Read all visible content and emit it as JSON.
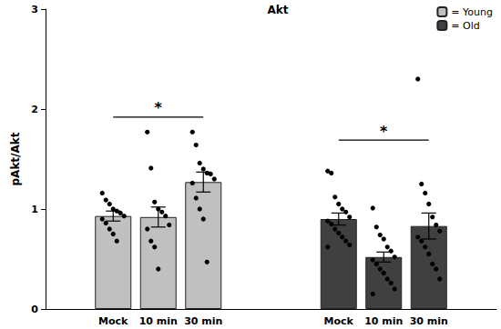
{
  "chart_data": {
    "type": "bar",
    "title": "Akt",
    "y_label": "pAkt/Akt",
    "categories": [
      null,
      "Mock",
      "10 min",
      "30 min",
      null,
      null,
      "Mock",
      "10 min",
      "30 min",
      null
    ],
    "ylim": [
      0,
      3
    ],
    "yticks": [
      0,
      1,
      2,
      3
    ],
    "grid": false,
    "legend": "top-right",
    "series": [
      {
        "name": "= Young",
        "color": "#c0c0c0",
        "values": [
          null,
          0.93,
          0.92,
          1.27,
          null,
          null,
          null,
          null,
          null,
          null
        ],
        "errors": [
          null,
          0.05,
          0.1,
          0.1,
          null,
          null,
          null,
          null,
          null,
          null
        ],
        "points": [
          null,
          [
            1.16,
            1.09,
            1.05,
            1.0,
            0.98,
            0.96,
            0.93,
            0.9,
            0.86,
            0.8,
            0.75,
            0.68
          ],
          [
            1.77,
            1.41,
            1.07,
            1.0,
            0.97,
            0.93,
            0.84,
            0.8,
            0.68,
            0.62,
            0.4
          ],
          [
            1.77,
            1.64,
            1.46,
            1.4,
            1.36,
            1.35,
            1.3,
            1.26,
            1.11,
            1.0,
            0.9,
            0.47
          ],
          null,
          null,
          null,
          null,
          null,
          null
        ]
      },
      {
        "name": "= Old",
        "color": "#404040",
        "values": [
          null,
          null,
          null,
          null,
          null,
          null,
          0.9,
          0.52,
          0.83,
          null
        ],
        "errors": [
          null,
          null,
          null,
          null,
          null,
          null,
          0.06,
          0.05,
          0.13,
          null
        ],
        "points": [
          null,
          null,
          null,
          null,
          null,
          null,
          [
            1.38,
            1.36,
            1.12,
            1.05,
            1.0,
            0.97,
            0.92,
            0.88,
            0.85,
            0.8,
            0.76,
            0.72,
            0.68,
            0.64,
            0.62
          ],
          [
            1.01,
            0.82,
            0.74,
            0.7,
            0.62,
            0.58,
            0.52,
            0.49,
            0.45,
            0.4,
            0.36,
            0.3,
            0.26,
            0.2,
            0.15
          ],
          [
            2.3,
            1.25,
            1.16,
            1.05,
            0.92,
            0.84,
            0.78,
            0.72,
            0.68,
            0.62,
            0.55,
            0.45,
            0.4,
            0.3
          ],
          null
        ]
      }
    ],
    "significance": [
      {
        "series": "= Young",
        "from": "Mock",
        "to": "30 min",
        "y": 1.92,
        "text": "*"
      },
      {
        "series": "= Old",
        "from": "Mock",
        "to": "30 min",
        "y": 1.69,
        "text": "*"
      }
    ]
  }
}
